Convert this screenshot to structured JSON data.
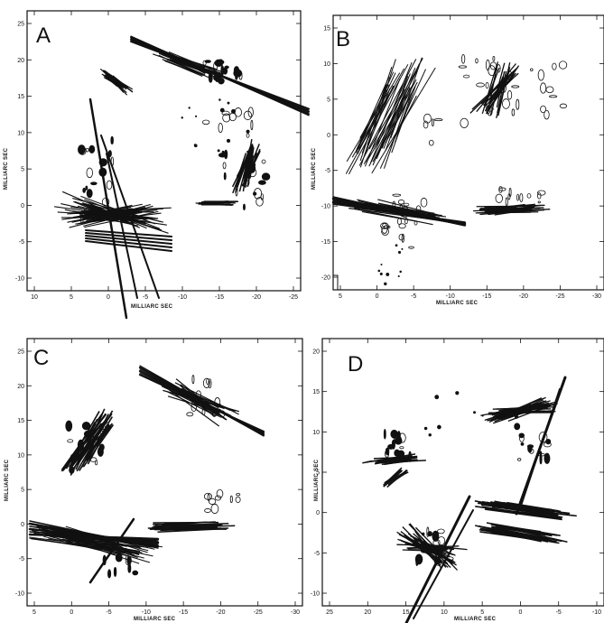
{
  "panels": [
    {
      "id": "A",
      "label": "A",
      "xlabel": "MILLIARC SEC",
      "ylabel": "MILLIARC SEC",
      "xticks": [
        "10",
        "5",
        "0",
        "-5",
        "-10",
        "-15",
        "-20",
        "-25"
      ],
      "yticks": [
        "25",
        "20",
        "15",
        "10",
        "5",
        "0",
        "-5",
        "-10"
      ]
    },
    {
      "id": "B",
      "label": "B",
      "xlabel": "MILLIARC SEC",
      "ylabel": "MILLIARC SEC",
      "xticks": [
        "5",
        "0",
        "-5",
        "-10",
        "-15",
        "-20",
        "-25",
        "-30"
      ],
      "yticks": [
        "15",
        "10",
        "5",
        "0",
        "-5",
        "-10",
        "-15",
        "-20"
      ]
    },
    {
      "id": "C",
      "label": "C",
      "xlabel": "MILLIARC SEC",
      "ylabel": "MILLIARC SEC",
      "xticks": [
        "5",
        "0",
        "-5",
        "-10",
        "-15",
        "-20",
        "-25",
        "-30"
      ],
      "yticks": [
        "25",
        "20",
        "15",
        "10",
        "5",
        "0",
        "-5",
        "-10"
      ]
    },
    {
      "id": "D",
      "label": "D",
      "xlabel": "MILLIARC SEC",
      "ylabel": "MILLIARC SEC",
      "xticks": [
        "25",
        "20",
        "15",
        "10",
        "5",
        "0",
        "-5",
        "-10"
      ],
      "yticks": [
        "20",
        "15",
        "10",
        "5",
        "0",
        "-5",
        "-10"
      ]
    }
  ],
  "colors": {
    "ink": "#111111",
    "background": "#ffffff"
  }
}
